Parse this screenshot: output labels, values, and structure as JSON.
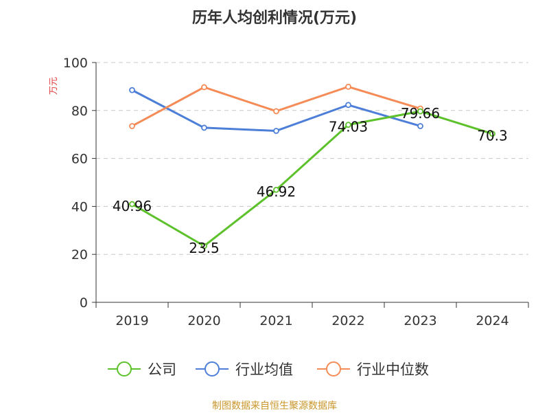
{
  "chart_data": {
    "type": "line",
    "title": "历年人均创利情况(万元)",
    "ylabel": "万元",
    "categories": [
      "2019",
      "2020",
      "2021",
      "2022",
      "2023",
      "2024"
    ],
    "ylim": [
      0,
      100
    ],
    "yticks": [
      0,
      20,
      40,
      60,
      80,
      100
    ],
    "grid": true,
    "legend_position": "bottom",
    "series": [
      {
        "name": "公司",
        "color": "#5cc12a",
        "values": [
          40.96,
          23.5,
          46.92,
          74.03,
          79.66,
          70.3
        ],
        "labels": [
          "40.96",
          "23.5",
          "46.92",
          "74.03",
          "79.66",
          "70.3"
        ]
      },
      {
        "name": "行业均值",
        "color": "#4d7fd9",
        "values": [
          88.5,
          72.8,
          71.5,
          82.3,
          73.5,
          null
        ]
      },
      {
        "name": "行业中位数",
        "color": "#f58b56",
        "values": [
          73.5,
          89.7,
          79.7,
          89.9,
          80.8,
          null
        ]
      }
    ]
  },
  "footer": {
    "source": "制图数据来自恒生聚源数据库",
    "color": "#c9962a"
  }
}
